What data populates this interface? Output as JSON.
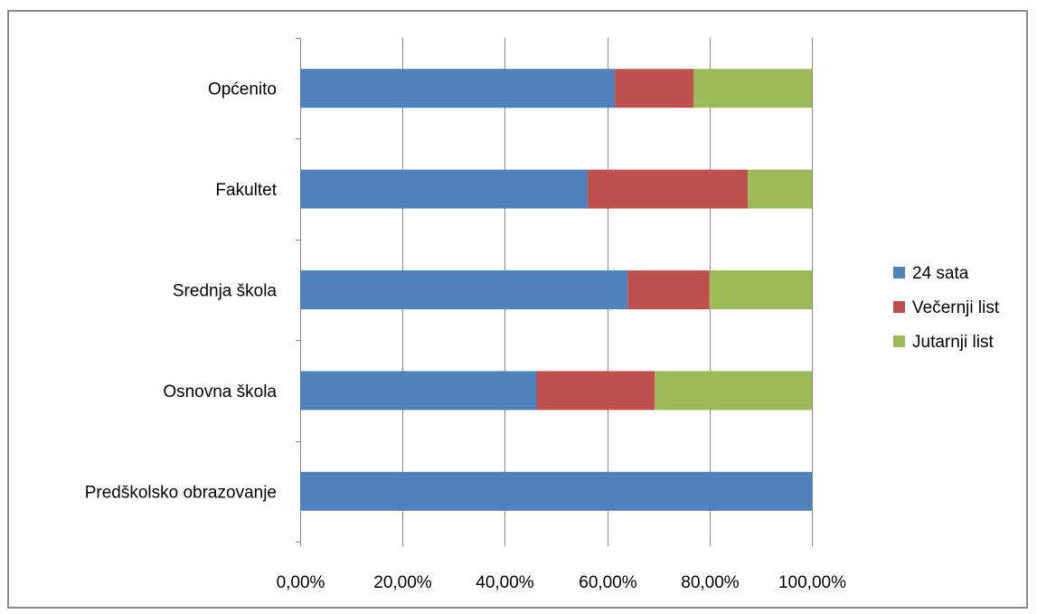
{
  "chart_data": {
    "type": "bar",
    "orientation": "horizontal",
    "stacked": true,
    "categories": [
      "Predškolsko obrazovanje",
      "Osnovna škola",
      "Srednja škola",
      "Fakultet",
      "Općenito"
    ],
    "series": [
      {
        "name": "24 sata",
        "color": "#4f81bd",
        "values": [
          1.0,
          0.462,
          0.64,
          0.562,
          0.615
        ]
      },
      {
        "name": "Večernji list",
        "color": "#c0504d",
        "values": [
          0.0,
          0.231,
          0.16,
          0.313,
          0.154
        ]
      },
      {
        "name": "Jutarnji list",
        "color": "#9bbb59",
        "values": [
          0.0,
          0.307,
          0.2,
          0.125,
          0.231
        ]
      }
    ],
    "x_ticks": [
      "0,00%",
      "20,00%",
      "40,00%",
      "60,00%",
      "80,00%",
      "100,00%"
    ],
    "xlim": [
      0,
      1
    ],
    "grid": true,
    "legend_position": "right"
  }
}
